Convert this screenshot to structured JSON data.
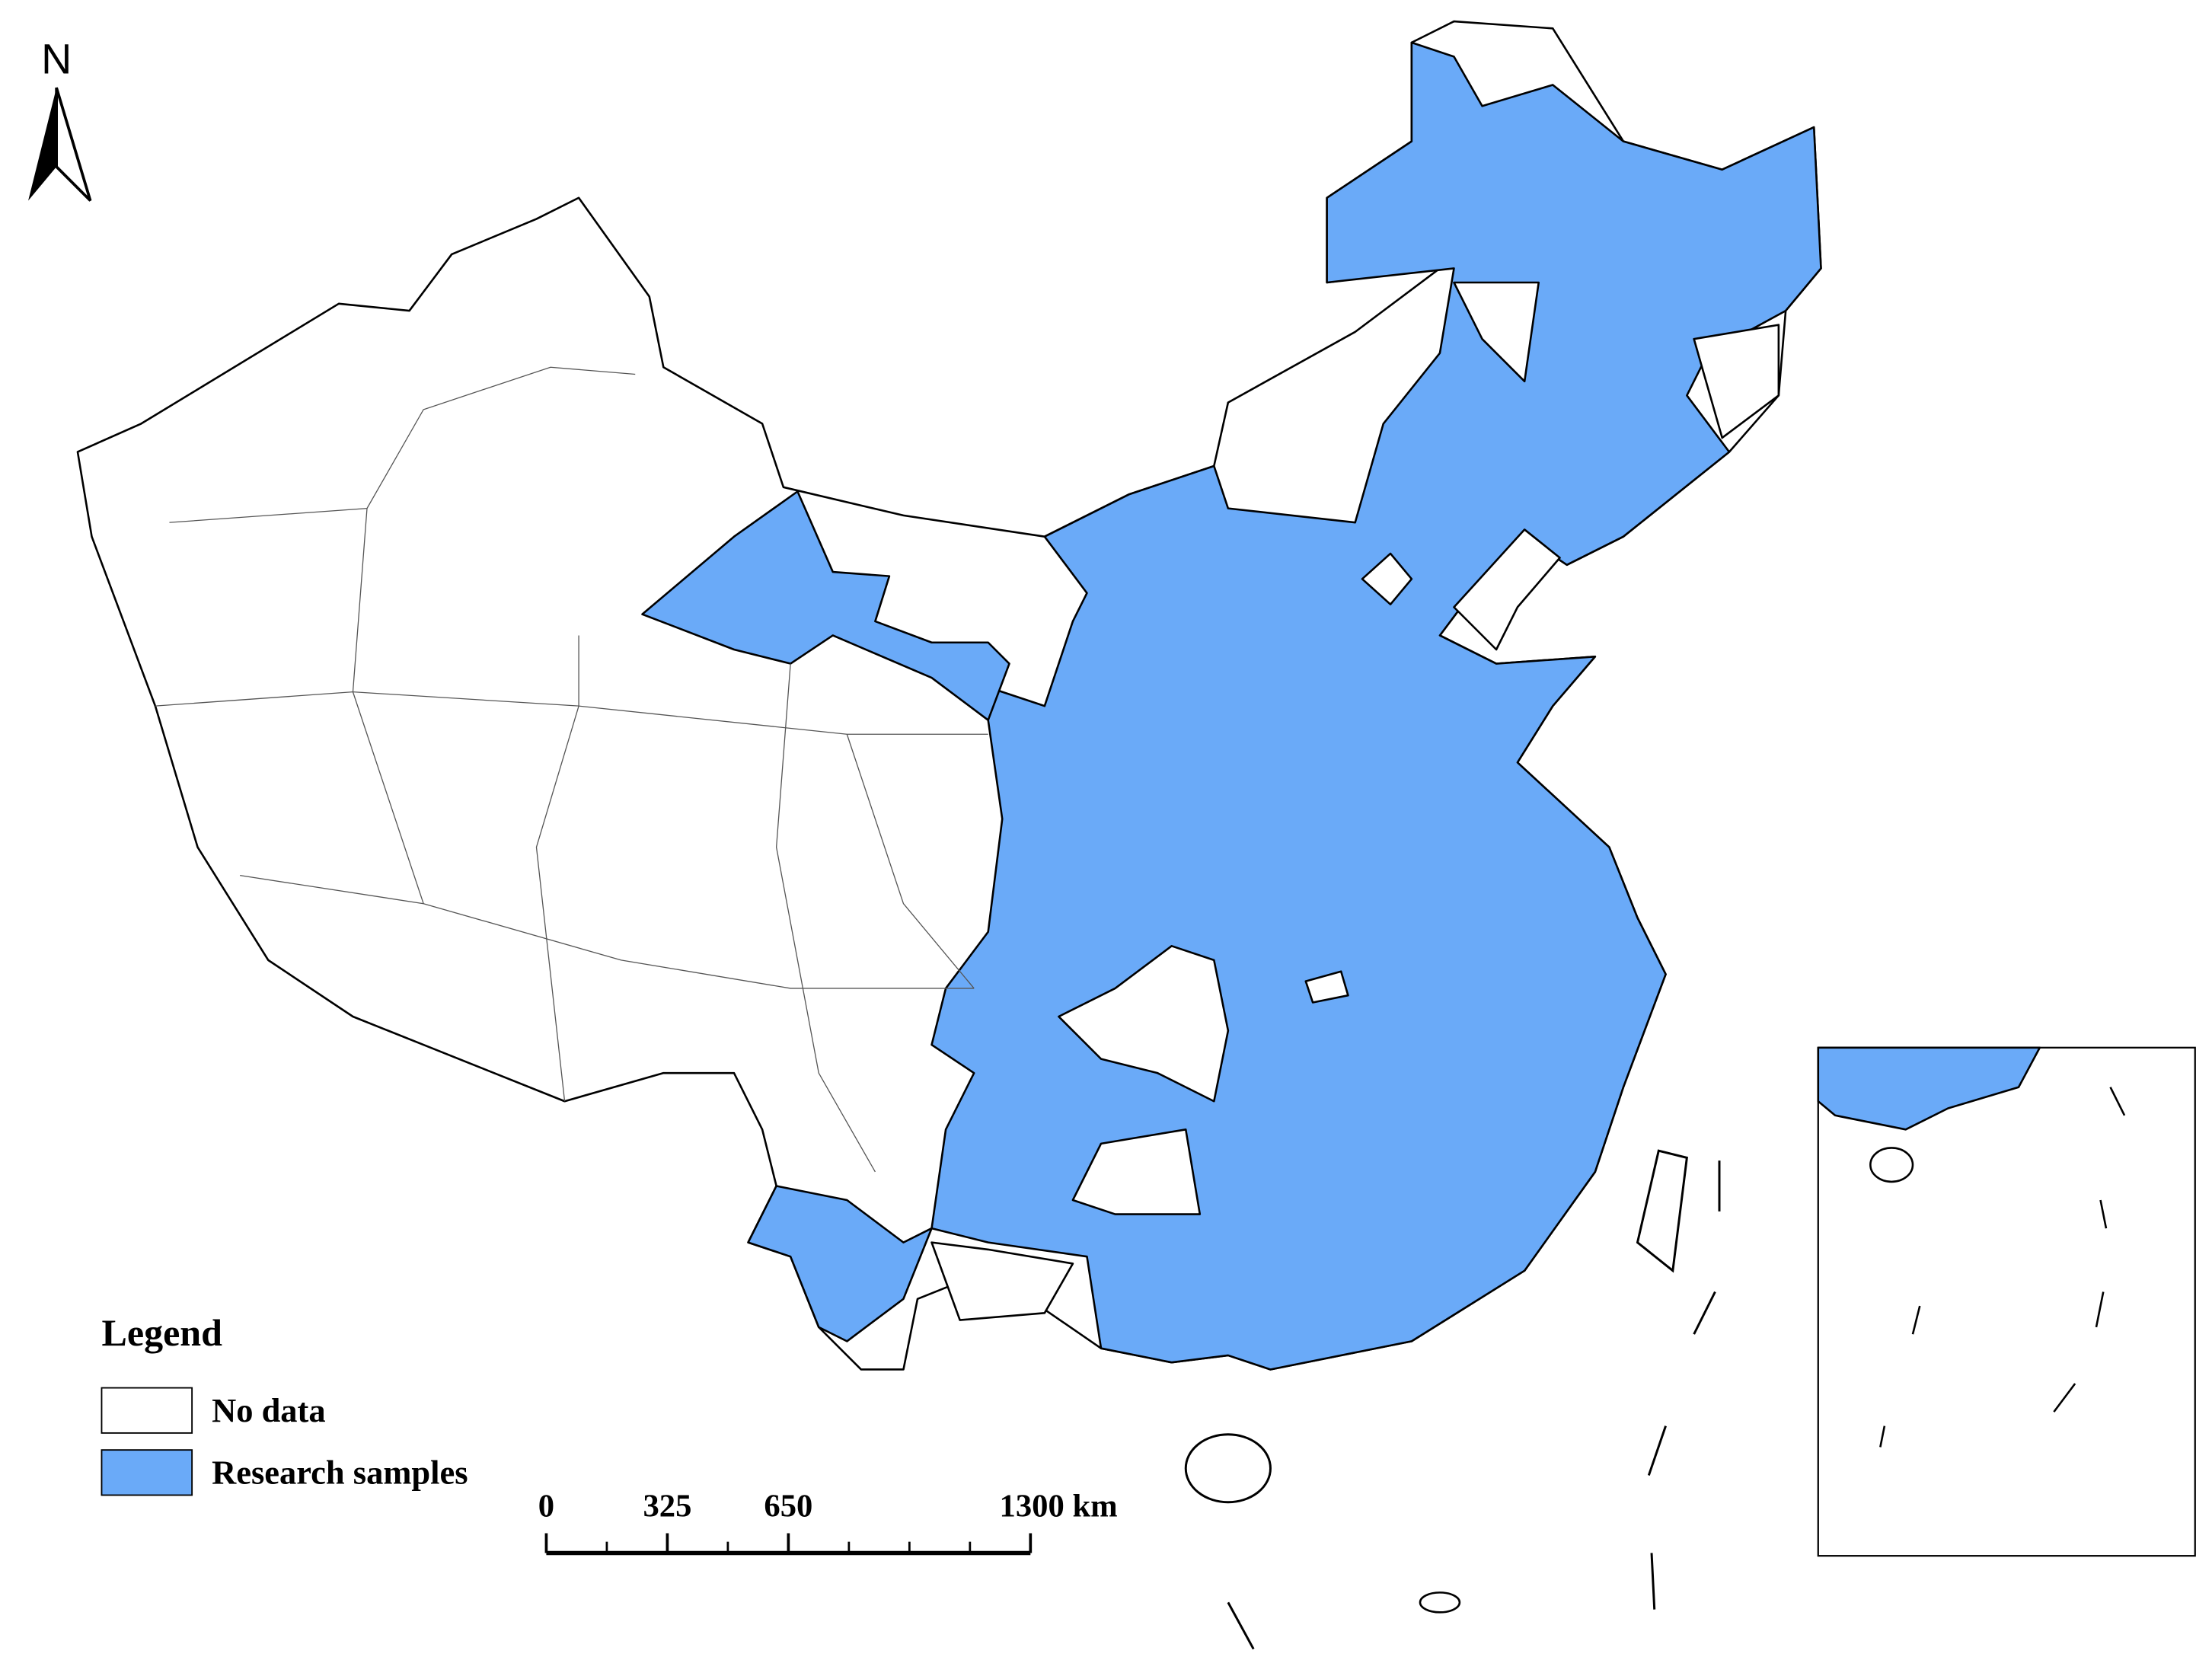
{
  "north_arrow": {
    "label": "N"
  },
  "legend": {
    "title": "Legend",
    "items": [
      {
        "label": "No data",
        "color": "#ffffff"
      },
      {
        "label": "Research samples",
        "color": "#6aaaf8"
      }
    ]
  },
  "scale_bar": {
    "ticks": [
      0,
      325,
      650,
      {
        "value": 1300,
        "label": "1300 km"
      }
    ]
  }
}
